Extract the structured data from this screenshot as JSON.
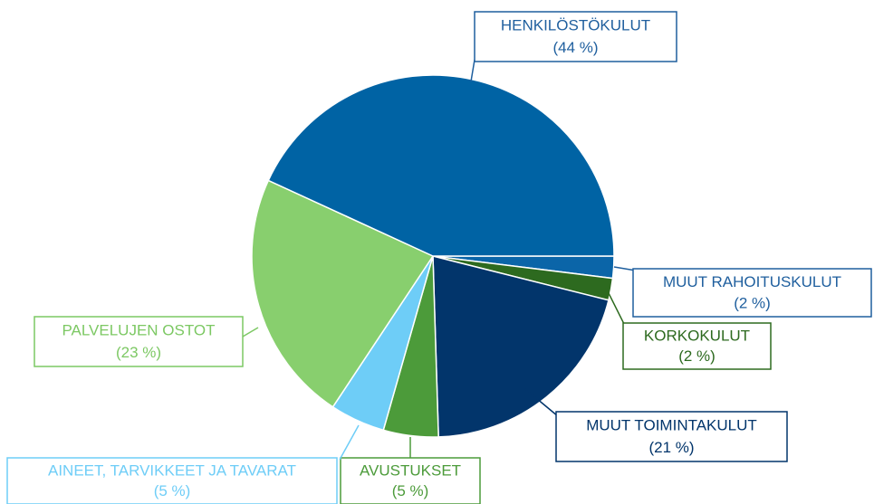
{
  "chart_data": {
    "type": "pie",
    "categories": [
      "MUUT RAHOITUSKULUT",
      "KORKOKULUT",
      "MUUT TOIMINTAKULUT",
      "AVUSTUKSET",
      "AINEET, TARVIKKEET JA TAVARAT",
      "PALVELUJEN OSTOT",
      "HENKILÖSTÖKULUT"
    ],
    "values": [
      2,
      2,
      21,
      5,
      5,
      23,
      44
    ],
    "value_labels": [
      "(2 %)",
      "(2 %)",
      "(21 %)",
      "(5 %)",
      "(5 %)",
      "(23 %)",
      "(44 %)"
    ],
    "colors": [
      "#0b65a8",
      "#2d6a1f",
      "#02356b",
      "#4c9b3a",
      "#6ecdf7",
      "#88cf6e",
      "#0063a4"
    ],
    "label_colors": [
      "#1f5f9e",
      "#2d6a1f",
      "#02356b",
      "#4c9b3a",
      "#6ecdf7",
      "#7cc863",
      "#1f5f9e"
    ]
  }
}
